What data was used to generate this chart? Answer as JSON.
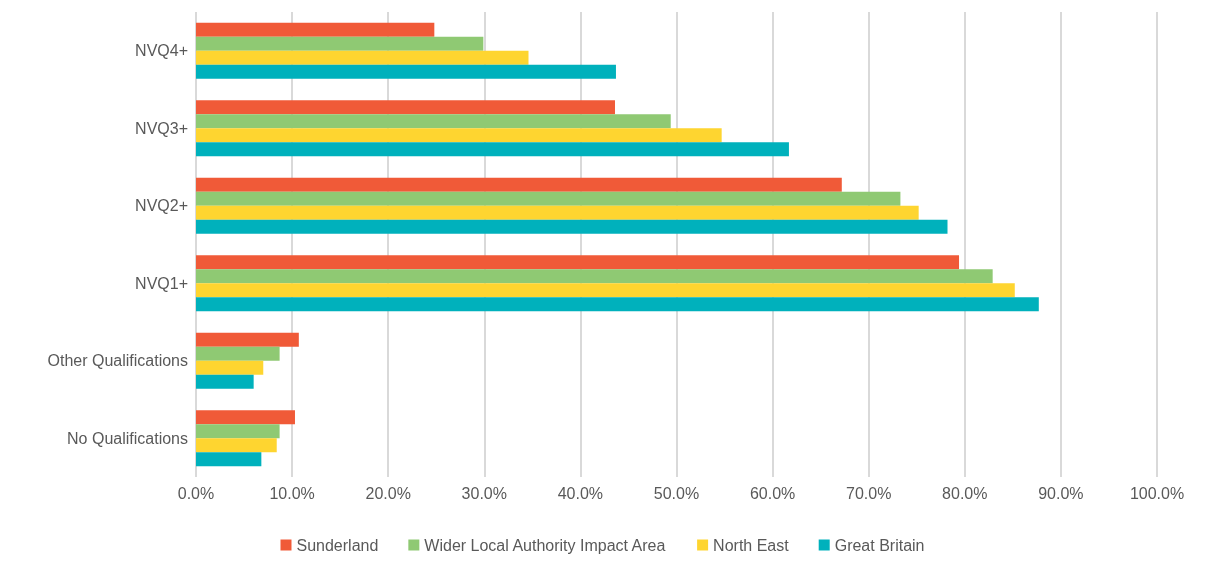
{
  "chart_data": {
    "type": "bar",
    "orientation": "horizontal",
    "categories": [
      "NVQ4+",
      "NVQ3+",
      "NVQ2+",
      "NVQ1+",
      "Other Qualifications",
      "No Qualifications"
    ],
    "series": [
      {
        "name": "Sunderland",
        "color": "#f05a38",
        "values": [
          24.8,
          43.6,
          67.2,
          79.4,
          10.7,
          10.3
        ]
      },
      {
        "name": "Wider Local Authority Impact Area",
        "color": "#8fc973",
        "values": [
          29.9,
          49.4,
          73.3,
          82.9,
          8.7,
          8.7
        ]
      },
      {
        "name": "North East",
        "color": "#fed530",
        "values": [
          34.6,
          54.7,
          75.2,
          85.2,
          7.0,
          8.4
        ]
      },
      {
        "name": "Great Britain",
        "color": "#00b1bc",
        "values": [
          43.7,
          61.7,
          78.2,
          87.7,
          6.0,
          6.8
        ]
      }
    ],
    "xlim": [
      0,
      100
    ],
    "xticks": [
      {
        "value": 0,
        "label": "0.0%"
      },
      {
        "value": 10,
        "label": "10.0%"
      },
      {
        "value": 20,
        "label": "20.0%"
      },
      {
        "value": 30,
        "label": "30.0%"
      },
      {
        "value": 40,
        "label": "40.0%"
      },
      {
        "value": 50,
        "label": "50.0%"
      },
      {
        "value": 60,
        "label": "60.0%"
      },
      {
        "value": 70,
        "label": "70.0%"
      },
      {
        "value": 80,
        "label": "80.0%"
      },
      {
        "value": 90,
        "label": "90.0%"
      },
      {
        "value": 100,
        "label": "100.0%"
      }
    ],
    "grid": "x",
    "legend": "bottom"
  }
}
